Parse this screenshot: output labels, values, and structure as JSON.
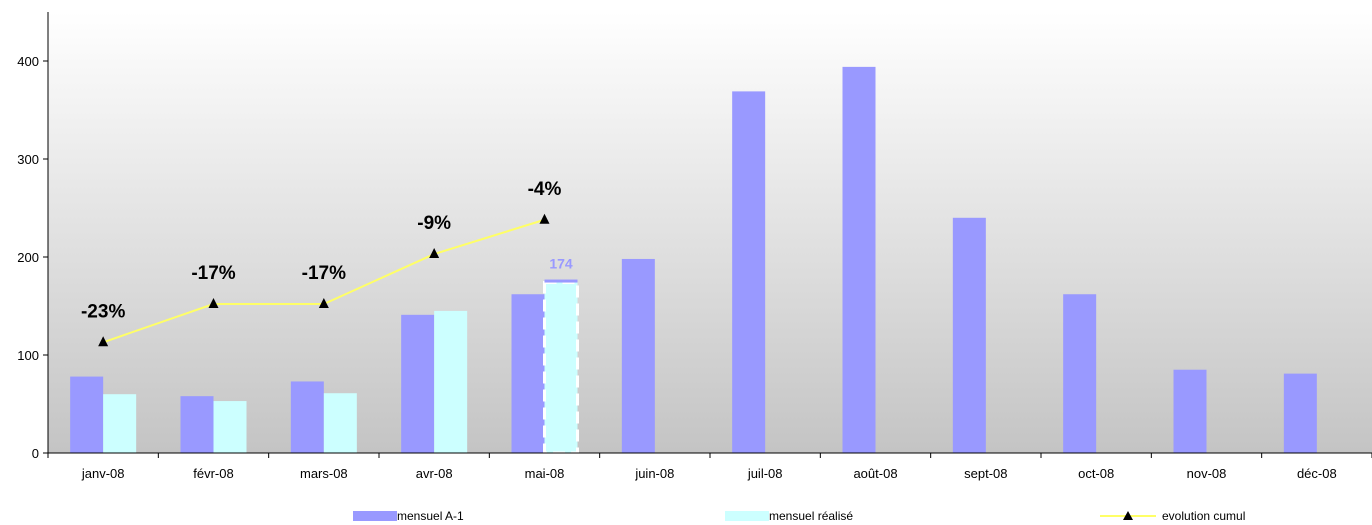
{
  "chart_data": {
    "type": "bar",
    "categories": [
      "janv-08",
      "févr-08",
      "mars-08",
      "avr-08",
      "mai-08",
      "juin-08",
      "juil-08",
      "août-08",
      "sept-08",
      "oct-08",
      "nov-08",
      "déc-08"
    ],
    "ylim": [
      0,
      450
    ],
    "y_ticks": [
      0,
      100,
      200,
      300,
      400
    ],
    "grid": false,
    "background": "vertical gradient white to light grey",
    "series": [
      {
        "name": "mensuel A-1",
        "kind": "bar",
        "color": "#9999ff",
        "values": [
          78,
          58,
          73,
          141,
          162,
          198,
          369,
          394,
          240,
          162,
          85,
          81
        ]
      },
      {
        "name": "mensuel réalisé",
        "kind": "bar",
        "color": "#ccffff",
        "values": [
          60,
          53,
          61,
          145,
          174,
          null,
          null,
          null,
          null,
          null,
          null,
          null
        ]
      },
      {
        "name": "evolution cumul",
        "kind": "line",
        "color": "#ffff66",
        "marker": "triangle",
        "values": [
          113,
          152,
          152,
          203,
          238,
          null,
          null,
          null,
          null,
          null,
          null,
          null
        ],
        "labels": [
          "-23%",
          "-17%",
          "-17%",
          "-9%",
          "-4%",
          "",
          "",
          "",
          "",
          "",
          "",
          ""
        ]
      }
    ],
    "highlight": {
      "category": "mai-08",
      "series": "mensuel réalisé",
      "label": "174",
      "label_color": "#9999ff",
      "a1_marker_value": 177
    },
    "legend": {
      "position": "bottom",
      "items": [
        {
          "label": "mensuel A-1",
          "color": "#9999ff",
          "kind": "bar"
        },
        {
          "label": "mensuel réalisé",
          "color": "#ccffff",
          "kind": "bar"
        },
        {
          "label": "evolution cumul",
          "color": "#ffff66",
          "kind": "line"
        }
      ]
    }
  }
}
